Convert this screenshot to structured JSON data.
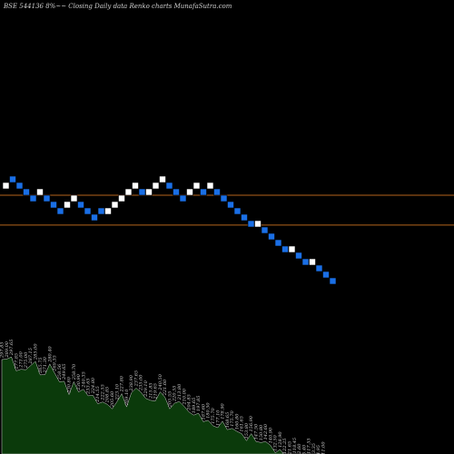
{
  "chart_title": "BSE 544136  8%~~  Closing Daily data  Renko  charts MunafaSutra.com",
  "colors": {
    "background": "#000000",
    "up_brick": "#ffffff",
    "down_brick": "#1a6fe6",
    "reference_line": "#b5651d",
    "volume_fill": "#0b3a0b",
    "volume_stroke": "#cfcfcf"
  },
  "chart_data": {
    "type": "renko",
    "title": "BSE 544136  8%~~  Closing Daily data  Renko  charts MunafaSutra.com",
    "grid": false,
    "bricks": [
      {
        "dir": "up",
        "level": 0
      },
      {
        "dir": "down",
        "level": 1
      },
      {
        "dir": "down",
        "level": 0
      },
      {
        "dir": "down",
        "level": -1
      },
      {
        "dir": "down",
        "level": -2
      },
      {
        "dir": "up",
        "level": -1
      },
      {
        "dir": "down",
        "level": -2
      },
      {
        "dir": "down",
        "level": -3
      },
      {
        "dir": "down",
        "level": -4
      },
      {
        "dir": "up",
        "level": -3
      },
      {
        "dir": "up",
        "level": -2
      },
      {
        "dir": "down",
        "level": -3
      },
      {
        "dir": "down",
        "level": -4
      },
      {
        "dir": "down",
        "level": -5
      },
      {
        "dir": "down",
        "level": -4
      },
      {
        "dir": "up",
        "level": -4
      },
      {
        "dir": "up",
        "level": -3
      },
      {
        "dir": "up",
        "level": -2
      },
      {
        "dir": "up",
        "level": -1
      },
      {
        "dir": "up",
        "level": 0
      },
      {
        "dir": "down",
        "level": -1
      },
      {
        "dir": "up",
        "level": -1
      },
      {
        "dir": "up",
        "level": 0
      },
      {
        "dir": "up",
        "level": 1
      },
      {
        "dir": "down",
        "level": 0
      },
      {
        "dir": "down",
        "level": -1
      },
      {
        "dir": "down",
        "level": -2
      },
      {
        "dir": "up",
        "level": -1
      },
      {
        "dir": "up",
        "level": 0
      },
      {
        "dir": "down",
        "level": -1
      },
      {
        "dir": "up",
        "level": 0
      },
      {
        "dir": "down",
        "level": -1
      },
      {
        "dir": "down",
        "level": -2
      },
      {
        "dir": "down",
        "level": -3
      },
      {
        "dir": "down",
        "level": -4
      },
      {
        "dir": "down",
        "level": -5
      },
      {
        "dir": "down",
        "level": -6
      },
      {
        "dir": "up",
        "level": -6
      },
      {
        "dir": "down",
        "level": -7
      },
      {
        "dir": "down",
        "level": -8
      },
      {
        "dir": "down",
        "level": -9
      },
      {
        "dir": "down",
        "level": -10
      },
      {
        "dir": "up",
        "level": -10
      },
      {
        "dir": "down",
        "level": -11
      },
      {
        "dir": "down",
        "level": -12
      },
      {
        "dir": "up",
        "level": -12
      },
      {
        "dir": "down",
        "level": -13
      },
      {
        "dir": "down",
        "level": -14
      },
      {
        "dir": "down",
        "level": -15
      }
    ],
    "reference_lines": [
      {
        "level": -1.5
      },
      {
        "level": -6.2
      }
    ],
    "volume_labels": [
      "297.85",
      "289.00",
      "297.65",
      "277.85",
      "271.00",
      "275.00",
      "287.15",
      "285.00",
      "265.75",
      "271.30",
      "280.40",
      "269.35",
      "258.56",
      "249.65",
      "230.80",
      "258.70",
      "230.90",
      "240.35",
      "233.65",
      "224.80",
      "214.55",
      "222.55",
      "208.85",
      "205.60",
      "223.10",
      "227.80",
      "209.10",
      "238.90",
      "237.65",
      "235.00",
      "229.10",
      "215.85",
      "219.65",
      "240.50",
      "221.60",
      "205.55",
      "220.55",
      "213.80",
      "210.00",
      "204.85",
      "189.65",
      "197.85",
      "187.60",
      "180.50",
      "175.70",
      "177.10",
      "178.90",
      "168.65",
      "175.70",
      "160.80",
      "161.65",
      "153.80",
      "156.90",
      "147.50",
      "150.80",
      "142.60",
      "140.90",
      "132.50",
      "128.90",
      "122.25",
      "121.65",
      "118.45",
      "112.60",
      "115.40",
      "117.55",
      "113.35",
      "114.95",
      "111.00"
    ]
  }
}
